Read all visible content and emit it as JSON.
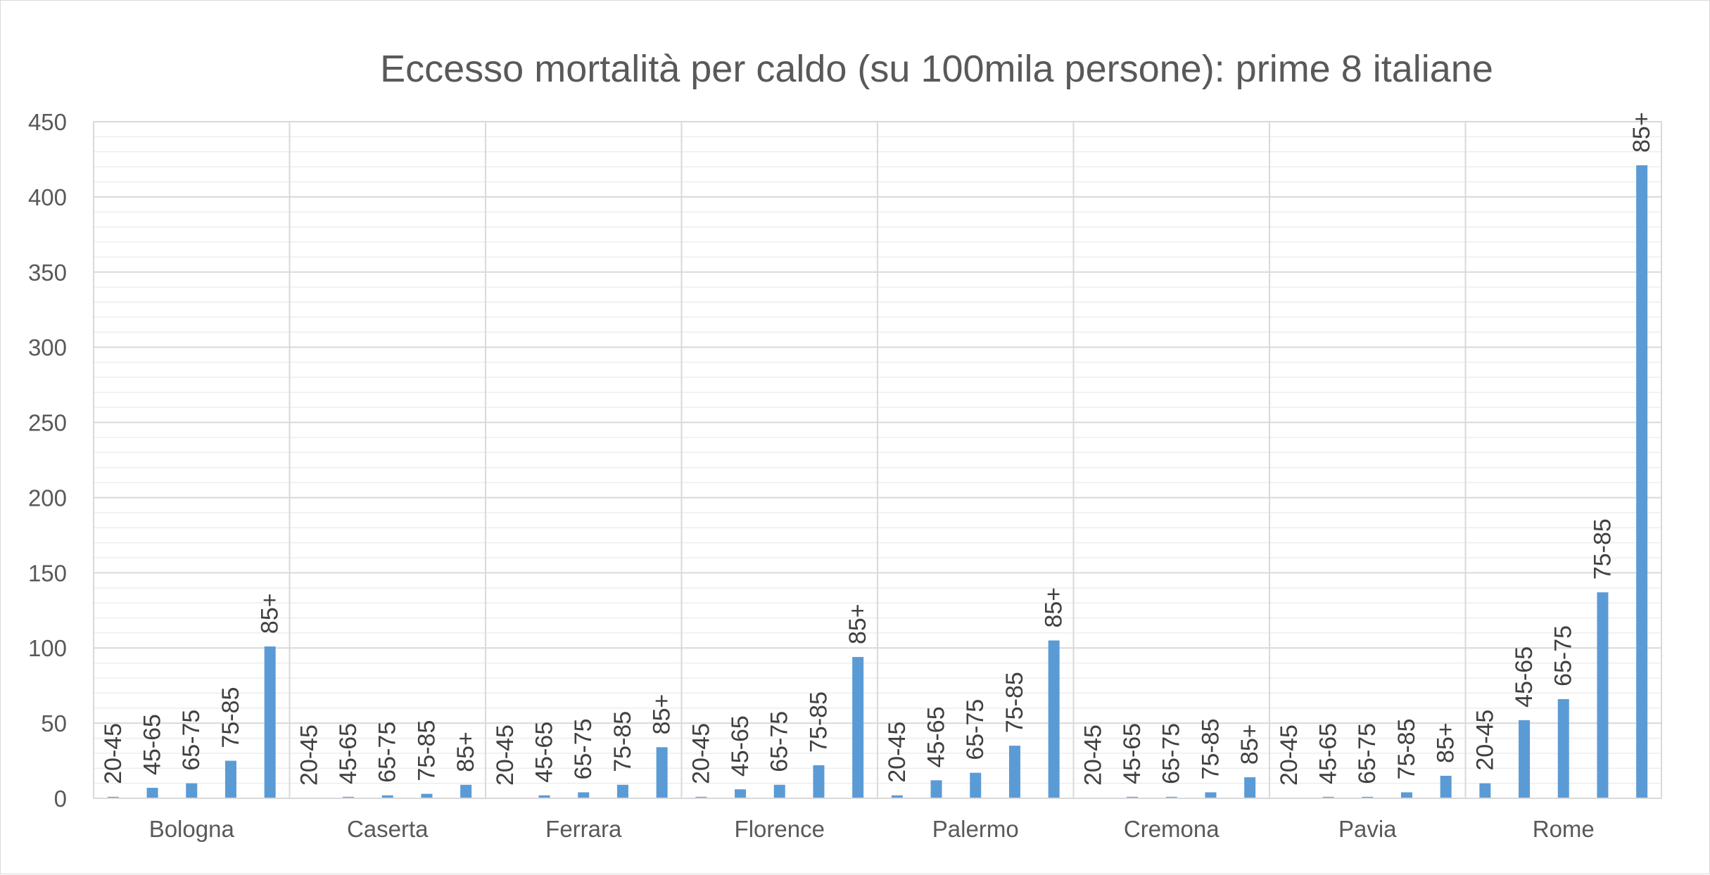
{
  "chart_data": {
    "type": "bar",
    "title": "Eccesso mortalità per caldo (su 100mila persone): prime 8 italiane",
    "xlabel": "",
    "ylabel": "",
    "ylim": [
      0,
      450
    ],
    "yticks": [
      0,
      50,
      100,
      150,
      200,
      250,
      300,
      350,
      400,
      450
    ],
    "grid": true,
    "legend": "none",
    "bar_color": "#5b9bd5",
    "categories": [
      "Bologna",
      "Caserta",
      "Ferrara",
      "Florence",
      "Palermo",
      "Cremona",
      "Pavia",
      "Rome"
    ],
    "subcategories": [
      "20-45",
      "45-65",
      "65-75",
      "75-85",
      "85+"
    ],
    "values": [
      [
        1,
        7,
        10,
        25,
        101
      ],
      [
        0,
        1,
        2,
        3,
        9
      ],
      [
        0,
        2,
        4,
        9,
        34
      ],
      [
        1,
        6,
        9,
        22,
        94
      ],
      [
        2,
        12,
        17,
        35,
        105
      ],
      [
        0,
        1,
        1,
        4,
        14
      ],
      [
        0,
        1,
        1,
        4,
        15
      ],
      [
        10,
        52,
        66,
        137,
        421
      ]
    ]
  }
}
